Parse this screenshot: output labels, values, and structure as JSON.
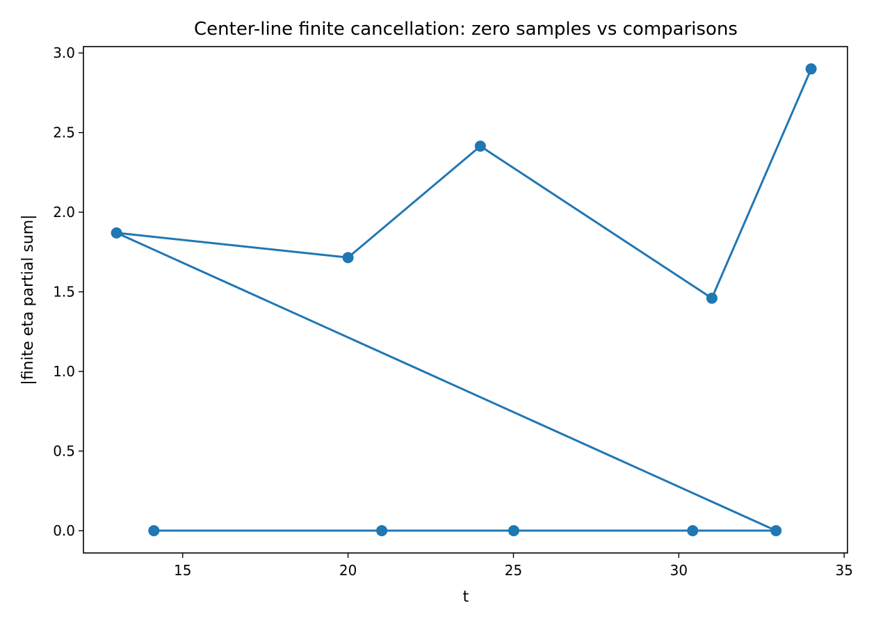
{
  "chart_data": {
    "type": "line",
    "title": "Center-line finite cancellation: zero samples vs comparisons",
    "xlabel": "t",
    "ylabel": "|finite eta partial sum|",
    "xlim": [
      12.0,
      35.1
    ],
    "ylim": [
      -0.14,
      3.04
    ],
    "xticks": [
      15,
      20,
      25,
      30,
      35
    ],
    "xtick_labels": [
      "15",
      "20",
      "25",
      "30",
      "35"
    ],
    "yticks": [
      0.0,
      0.5,
      1.0,
      1.5,
      2.0,
      2.5,
      3.0
    ],
    "ytick_labels": [
      "0.0",
      "0.5",
      "1.0",
      "1.5",
      "2.0",
      "2.5",
      "3.0"
    ],
    "grid": false,
    "legend": "none",
    "color": "#1f77b4",
    "marker": "circle",
    "points": [
      {
        "x": 14.13,
        "y": 0.0
      },
      {
        "x": 21.02,
        "y": 0.0
      },
      {
        "x": 25.01,
        "y": 0.0
      },
      {
        "x": 30.42,
        "y": 0.0
      },
      {
        "x": 32.94,
        "y": 0.0
      },
      {
        "x": 13.0,
        "y": 1.87
      },
      {
        "x": 20.0,
        "y": 1.715
      },
      {
        "x": 24.0,
        "y": 2.415
      },
      {
        "x": 31.0,
        "y": 1.46
      },
      {
        "x": 34.0,
        "y": 2.9
      }
    ]
  }
}
